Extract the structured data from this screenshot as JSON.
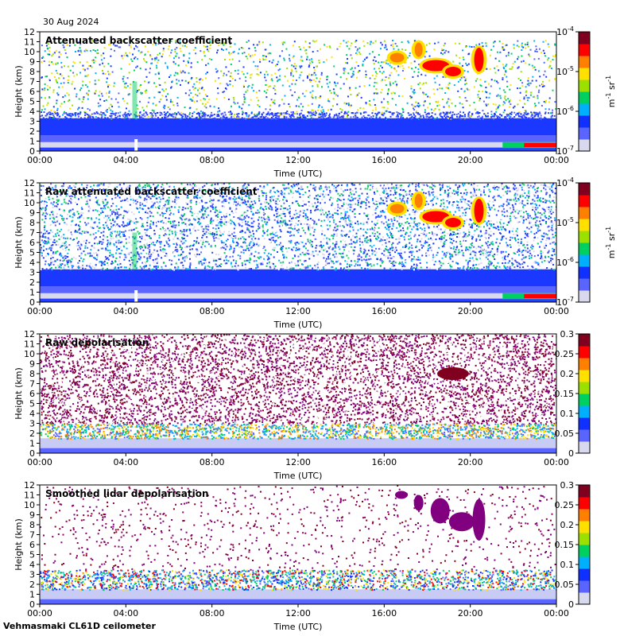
{
  "date": "30 Aug 2024",
  "footer": "Vehmasmaki CL61D ceilometer",
  "colors": {
    "cmap": [
      "#d8d8ee",
      "#5a64ff",
      "#1030ff",
      "#00b0ff",
      "#00d060",
      "#9ce000",
      "#ffe000",
      "#ff8000",
      "#ff0000",
      "#800020"
    ],
    "ground": "#f6f6ff"
  },
  "chart_data": [
    {
      "type": "heatmap",
      "title": "Attenuated backscatter coefficient",
      "xlabel": "Time (UTC)",
      "ylabel": "Height (km)",
      "x_ticks": [
        "00:00",
        "04:00",
        "08:00",
        "12:00",
        "16:00",
        "20:00",
        "00:00"
      ],
      "y_ticks": [
        0,
        1,
        2,
        3,
        4,
        5,
        6,
        7,
        8,
        9,
        10,
        11,
        12
      ],
      "ylim": [
        0,
        12
      ],
      "colorbar": {
        "scale": "log",
        "range": [
          1e-07,
          0.0001
        ],
        "ticks": [
          "10",
          "10",
          "10",
          "10"
        ],
        "tick_exponents": [
          "-7",
          "-6",
          "-5",
          "-4"
        ],
        "unit_base": "m",
        "unit_exp1": "-1",
        "unit_mid": " sr",
        "unit_exp2": "-1"
      },
      "features": {
        "boundary_layer_top_km": 3.5,
        "high_cloud_base_km": [
          7.5,
          9.0
        ],
        "high_cloud_time_h": [
          16,
          21
        ]
      }
    },
    {
      "type": "heatmap",
      "title": "Raw attenuated backscatter coefficient",
      "xlabel": "Time (UTC)",
      "ylabel": "Height (km)",
      "x_ticks": [
        "00:00",
        "04:00",
        "08:00",
        "12:00",
        "16:00",
        "20:00",
        "00:00"
      ],
      "y_ticks": [
        0,
        1,
        2,
        3,
        4,
        5,
        6,
        7,
        8,
        9,
        10,
        11,
        12
      ],
      "ylim": [
        0,
        12
      ],
      "colorbar": {
        "scale": "log",
        "range": [
          1e-07,
          0.0001
        ],
        "ticks": [
          "10",
          "10",
          "10",
          "10"
        ],
        "tick_exponents": [
          "-7",
          "-6",
          "-5",
          "-4"
        ],
        "unit_base": "m",
        "unit_exp1": "-1",
        "unit_mid": " sr",
        "unit_exp2": "-1"
      },
      "features": {
        "noise": "dense blue noise at all heights",
        "high_cloud_time_h": [
          16,
          21
        ]
      }
    },
    {
      "type": "heatmap",
      "title": "Raw depolarisation",
      "xlabel": "Time (UTC)",
      "ylabel": "Height (km)",
      "x_ticks": [
        "00:00",
        "04:00",
        "08:00",
        "12:00",
        "16:00",
        "20:00",
        "00:00"
      ],
      "y_ticks": [
        0,
        1,
        2,
        3,
        4,
        5,
        6,
        7,
        8,
        9,
        10,
        11,
        12
      ],
      "ylim": [
        0,
        12
      ],
      "colorbar": {
        "scale": "linear",
        "range": [
          0,
          0.3
        ],
        "ticks": [
          "0",
          "0.05",
          "0.1",
          "0.15",
          "0.2",
          "0.25",
          "0.3"
        ]
      },
      "features": {
        "noise": "dense purple/white noise above 3 km",
        "high_cloud_time_h": [
          18,
          21
        ]
      }
    },
    {
      "type": "heatmap",
      "title": "Smoothed lidar depolarisation",
      "xlabel": "Time (UTC)",
      "ylabel": "Height (km)",
      "x_ticks": [
        "00:00",
        "04:00",
        "08:00",
        "12:00",
        "16:00",
        "20:00",
        "00:00"
      ],
      "y_ticks": [
        0,
        1,
        2,
        3,
        4,
        5,
        6,
        7,
        8,
        9,
        10,
        11,
        12
      ],
      "ylim": [
        0,
        12
      ],
      "colorbar": {
        "scale": "linear",
        "range": [
          0,
          0.3
        ],
        "ticks": [
          "0",
          "0.05",
          "0.1",
          "0.15",
          "0.2",
          "0.25",
          "0.3"
        ]
      },
      "features": {
        "boundary_layer_top_km": 3.0,
        "high_cloud_time_h": [
          16,
          21
        ]
      }
    }
  ]
}
